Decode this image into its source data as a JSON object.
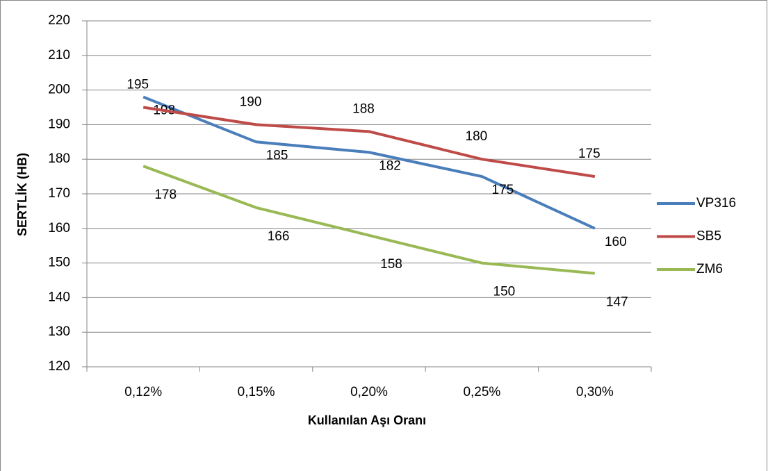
{
  "chart_data": {
    "type": "line",
    "x_label": "Kullanılan Aşı Oranı",
    "y_label": "SERTLİK (HB)",
    "categories": [
      "0,12%",
      "0,15%",
      "0,20%",
      "0,25%",
      "0,30%"
    ],
    "series": [
      {
        "name": "VP316",
        "color": "#4a7ebb",
        "values": [
          198,
          185,
          182,
          175,
          160
        ]
      },
      {
        "name": "SB5",
        "color": "#be4b48",
        "values": [
          195,
          190,
          188,
          180,
          175
        ]
      },
      {
        "name": "ZM6",
        "color": "#98b954",
        "values": [
          178,
          166,
          158,
          150,
          147
        ]
      }
    ],
    "ylim": [
      120,
      220
    ],
    "yticks": [
      120,
      130,
      140,
      150,
      160,
      170,
      180,
      190,
      200,
      210,
      220
    ],
    "grid": true,
    "legend": "right"
  }
}
